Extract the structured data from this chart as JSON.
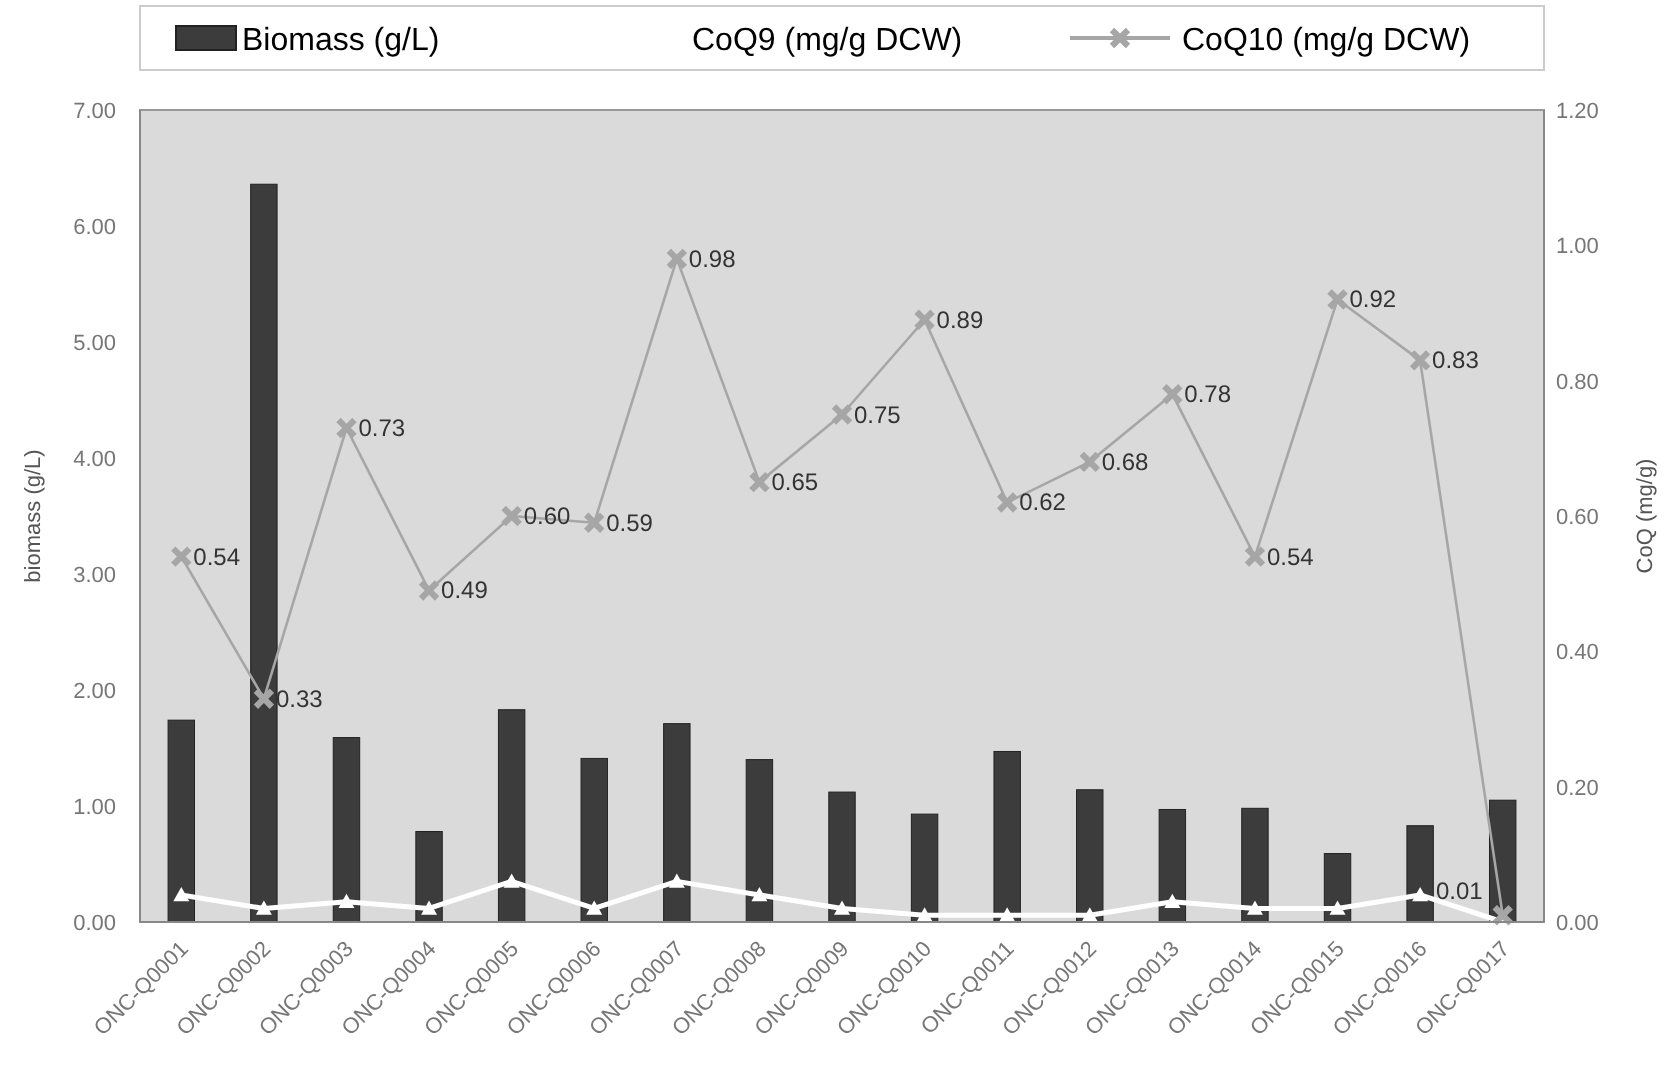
{
  "chart_data": {
    "type": "bar",
    "categories": [
      "ONC-Q0001",
      "ONC-Q0002",
      "ONC-Q0003",
      "ONC-Q0004",
      "ONC-Q0005",
      "ONC-Q0006",
      "ONC-Q0007",
      "ONC-Q0008",
      "ONC-Q0009",
      "ONC-Q0010",
      "ONC-Q0011",
      "ONC-Q0012",
      "ONC-Q0013",
      "ONC-Q0014",
      "ONC-Q0015",
      "ONC-Q0016",
      "ONC-Q0017"
    ],
    "series": [
      {
        "name": "Biomass (g/L)",
        "color": "#3c3c3c",
        "values": [
          1.74,
          6.36,
          1.59,
          0.78,
          1.83,
          1.41,
          1.71,
          1.4,
          1.12,
          0.93,
          1.47,
          1.14,
          0.97,
          0.98,
          0.59,
          0.83,
          1.05
        ]
      },
      {
        "name": "CoQ9 (mg/g DCW)",
        "type": "line",
        "axis": "y2",
        "marker": "triangle",
        "color": "#ffffff",
        "values": [
          0.04,
          0.02,
          0.03,
          0.02,
          0.06,
          0.02,
          0.06,
          0.04,
          0.02,
          0.01,
          0.01,
          0.01,
          0.03,
          0.02,
          0.02,
          0.04,
          0.0
        ]
      },
      {
        "name": "CoQ10 (mg/g DCW)",
        "type": "line",
        "axis": "y2",
        "marker": "cross",
        "color": "#a6a6a6",
        "values": [
          0.54,
          0.33,
          0.73,
          0.49,
          0.6,
          0.59,
          0.98,
          0.65,
          0.75,
          0.89,
          0.62,
          0.68,
          0.78,
          0.54,
          0.92,
          0.83,
          0.01
        ],
        "value_labels": [
          "0.54",
          "0.33",
          "0.73",
          "0.49",
          "0.60",
          "0.59",
          "0.98",
          "0.65",
          "0.75",
          "0.89",
          "0.62",
          "0.68",
          "0.78",
          "0.54",
          "0.92",
          "0.83",
          "0.01"
        ]
      }
    ],
    "ylabel": "biomass (g/L)",
    "y2label": "CoQ (mg/g)",
    "ylim": [
      0,
      7
    ],
    "yticks": [
      {
        "value": 0,
        "label": "0.00"
      },
      {
        "value": 1,
        "label": "1.00"
      },
      {
        "value": 2,
        "label": "2.00"
      },
      {
        "value": 3,
        "label": "3.00"
      },
      {
        "value": 4,
        "label": "4.00"
      },
      {
        "value": 5,
        "label": "5.00"
      },
      {
        "value": 6,
        "label": "6.00"
      },
      {
        "value": 7,
        "label": "7.00"
      }
    ],
    "y2lim": [
      0,
      1.2
    ],
    "y2ticks": [
      {
        "value": 0,
        "label": "0.00"
      },
      {
        "value": 0.2,
        "label": "0.20"
      },
      {
        "value": 0.4,
        "label": "0.40"
      },
      {
        "value": 0.6,
        "label": "0.60"
      },
      {
        "value": 0.8,
        "label": "0.80"
      },
      {
        "value": 1.0,
        "label": "1.00"
      },
      {
        "value": 1.2,
        "label": "1.20"
      }
    ],
    "legend": "top",
    "grid": false
  }
}
